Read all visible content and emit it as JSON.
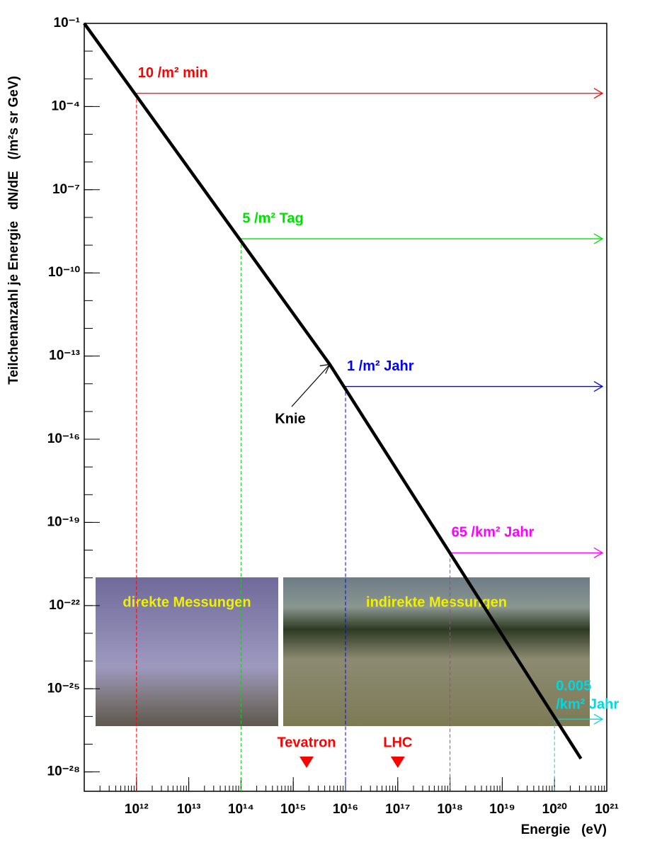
{
  "chart_data": {
    "type": "line",
    "xlabel": "Energie   (eV)",
    "ylabel": "Teilchenanzahl je Energie   dN/dE   (/m²s sr GeV)",
    "xlog": true,
    "ylog": true,
    "xlim": [
      100000000000.0,
      1e+21
    ],
    "ylim": [
      2e-29,
      0.1
    ],
    "xticks": [
      {
        "value": 1000000000000.0,
        "label": "10¹²"
      },
      {
        "value": 10000000000000.0,
        "label": "10¹³"
      },
      {
        "value": 100000000000000.0,
        "label": "10¹⁴"
      },
      {
        "value": 1000000000000000.0,
        "label": "10¹⁵"
      },
      {
        "value": 1e+16,
        "label": "10¹⁶"
      },
      {
        "value": 1e+17,
        "label": "10¹⁷"
      },
      {
        "value": 1e+18,
        "label": "10¹⁸"
      },
      {
        "value": 1e+19,
        "label": "10¹⁹"
      },
      {
        "value": 1e+20,
        "label": "10²⁰"
      },
      {
        "value": 1e+21,
        "label": "10²¹"
      }
    ],
    "yticks": [
      {
        "value": 0.1,
        "label": "10⁻¹"
      },
      {
        "value": 0.0001,
        "label": "10⁻⁴"
      },
      {
        "value": 1e-07,
        "label": "10⁻⁷"
      },
      {
        "value": 1e-10,
        "label": "10⁻¹⁰"
      },
      {
        "value": 1e-13,
        "label": "10⁻¹³"
      },
      {
        "value": 1e-16,
        "label": "10⁻¹⁶"
      },
      {
        "value": 1e-19,
        "label": "10⁻¹⁹"
      },
      {
        "value": 1e-22,
        "label": "10⁻²²"
      },
      {
        "value": 1e-25,
        "label": "10⁻²⁵"
      },
      {
        "value": 1e-28,
        "label": "10⁻²⁸"
      }
    ],
    "series": [
      {
        "color": "#000000",
        "x": [
          100000000000.0,
          5000000000000000.0,
          3.2e+20
        ],
        "values": [
          0.1,
          5e-14,
          3e-28
        ]
      }
    ],
    "rates": [
      {
        "lines": [
          "10 /m² min"
        ],
        "color": "#ff0000",
        "x": 1000000000000.0,
        "y": 0.0003
      },
      {
        "lines": [
          "5 /m² Tag"
        ],
        "color": "#00e000",
        "x": 100000000000000.0,
        "y": 1.7e-09
      },
      {
        "lines": [
          "1 /m² Jahr"
        ],
        "color": "#0000ff",
        "x": 1e+16,
        "y": 8e-15
      },
      {
        "lines": [
          "65 /km² Jahr"
        ],
        "color": "#ff00ff",
        "x": 1e+18,
        "y": 8e-21
      },
      {
        "lines": [
          "0.005",
          "/km² Jahr"
        ],
        "color": "#00d8e0",
        "x": 1e+20,
        "y": 8e-27
      }
    ],
    "knee": {
      "text": "Knie",
      "x": 5000000000000000.0,
      "y": 5e-14
    },
    "accelerators": [
      {
        "name": "Tevatron",
        "x": 1800000000000000.0
      },
      {
        "name": "LHC",
        "x": 1e+17
      }
    ],
    "photos": [
      {
        "label": "direkte Messungen"
      },
      {
        "label": "indirekte Messungen"
      }
    ]
  }
}
